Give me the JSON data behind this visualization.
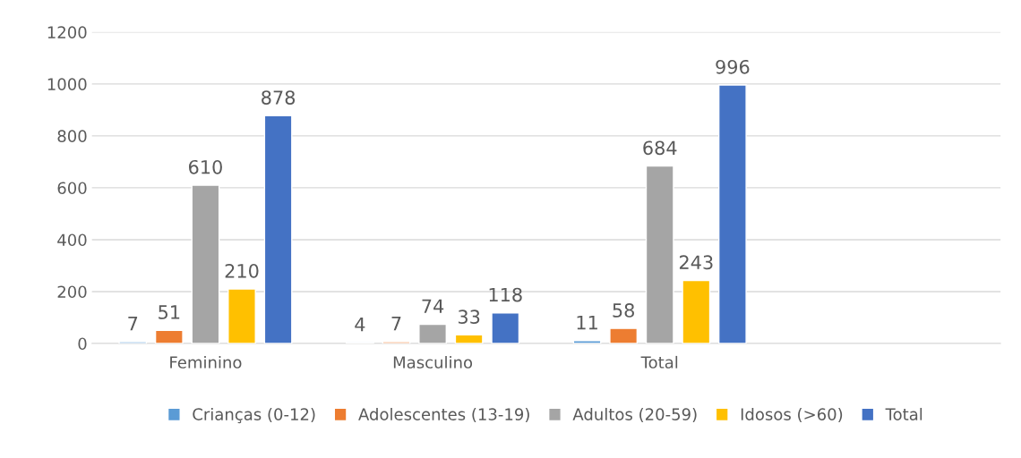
{
  "chart_data": {
    "type": "bar",
    "categories": [
      "Feminino",
      "Masculino",
      "Total",
      null
    ],
    "series": [
      {
        "name": "Crianças (0-12)",
        "color": "#5b9bd5",
        "values": [
          7,
          4,
          11,
          null
        ]
      },
      {
        "name": "Adolescentes (13-19)",
        "color": "#ed7d31",
        "values": [
          51,
          7,
          58,
          null
        ]
      },
      {
        "name": "Adultos (20-59)",
        "color": "#a5a5a5",
        "values": [
          610,
          74,
          684,
          null
        ]
      },
      {
        "name": "Idosos (>60)",
        "color": "#ffc000",
        "values": [
          210,
          33,
          243,
          null
        ]
      },
      {
        "name": "Total",
        "color": "#4472c4",
        "values": [
          878,
          118,
          996,
          null
        ]
      }
    ],
    "ylim": [
      0,
      1200
    ],
    "yticks": [
      0,
      200,
      400,
      600,
      800,
      1000,
      1200
    ],
    "grid": "y",
    "legend": "bottom",
    "data_labels": true
  }
}
